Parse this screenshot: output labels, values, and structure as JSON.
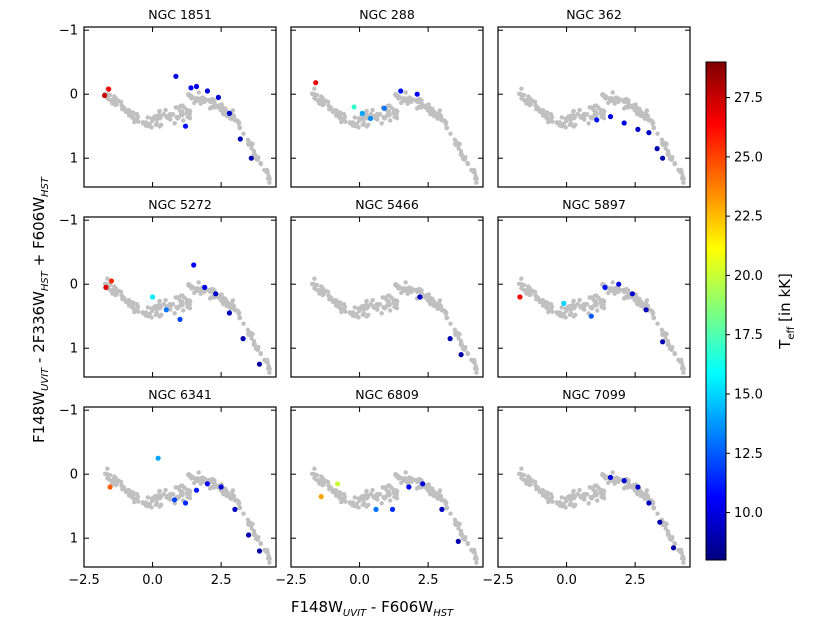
{
  "figure": {
    "xlabel": "F148W",
    "xlabel_sub": "UVIT",
    "xlabel_tail": " - F606W",
    "xlabel_sub2": "HST",
    "ylabel_parts": [
      "F148W",
      "UVIT",
      " - 2F336W",
      "HST",
      " + F606W",
      "HST"
    ],
    "colorbar_label": "T",
    "colorbar_label_sub": "eff",
    "colorbar_label_tail": " [in kK]",
    "colorbar_range": [
      8.0,
      29.0
    ],
    "colorbar_ticks": [
      "10.0",
      "12.5",
      "15.0",
      "17.5",
      "20.0",
      "22.5",
      "25.0",
      "27.5"
    ],
    "x_ticks": [
      "−2.5",
      "0.0",
      "2.5"
    ],
    "x_tick_values": [
      -2.5,
      0.0,
      2.5
    ],
    "y_ticks": [
      "−1",
      "0",
      "1"
    ],
    "y_tick_values": [
      -1,
      0,
      1
    ],
    "xlim": [
      -2.5,
      4.5
    ],
    "ylim": [
      1.45,
      -1.05
    ],
    "gray_color": "#c0c0c0",
    "colormap": "jet"
  },
  "chart_data": [
    {
      "type": "scatter",
      "title": "NGC 1851",
      "hot_stars": [
        [
          -1.75,
          0.02,
          27.5
        ],
        [
          -1.6,
          -0.08,
          26.5
        ],
        [
          0.85,
          -0.28,
          10.0
        ],
        [
          1.2,
          0.5,
          11.0
        ],
        [
          1.4,
          -0.1,
          10.5
        ],
        [
          1.6,
          -0.12,
          10.2
        ],
        [
          2.0,
          -0.05,
          9.8
        ],
        [
          2.4,
          0.05,
          9.8
        ],
        [
          2.8,
          0.3,
          9.5
        ],
        [
          3.2,
          0.7,
          9.2
        ],
        [
          3.6,
          1.0,
          9.0
        ]
      ]
    },
    {
      "type": "scatter",
      "title": "NGC 288",
      "hot_stars": [
        [
          -1.6,
          -0.18,
          26.5
        ],
        [
          -0.2,
          0.2,
          17.0
        ],
        [
          0.1,
          0.3,
          14.0
        ],
        [
          0.4,
          0.38,
          13.5
        ],
        [
          0.9,
          0.22,
          13.0
        ],
        [
          1.5,
          -0.05,
          11.0
        ],
        [
          2.1,
          0.0,
          10.5
        ]
      ]
    },
    {
      "type": "scatter",
      "title": "NGC 362",
      "hot_stars": [
        [
          1.1,
          0.4,
          11.0
        ],
        [
          1.6,
          0.35,
          10.0
        ],
        [
          2.1,
          0.45,
          10.0
        ],
        [
          2.6,
          0.55,
          9.5
        ],
        [
          3.0,
          0.6,
          9.5
        ],
        [
          3.3,
          0.85,
          9.0
        ],
        [
          3.5,
          1.0,
          9.0
        ]
      ]
    },
    {
      "type": "scatter",
      "title": "NGC 5272",
      "hot_stars": [
        [
          -1.7,
          0.05,
          27.0
        ],
        [
          -1.5,
          -0.05,
          25.5
        ],
        [
          0.0,
          0.2,
          15.5
        ],
        [
          0.5,
          0.4,
          13.0
        ],
        [
          1.0,
          0.55,
          12.0
        ],
        [
          1.5,
          -0.3,
          10.5
        ],
        [
          1.9,
          0.05,
          10.0
        ],
        [
          2.3,
          0.15,
          9.5
        ],
        [
          2.8,
          0.45,
          9.2
        ],
        [
          3.3,
          0.85,
          9.0
        ],
        [
          3.9,
          1.25,
          8.8
        ]
      ]
    },
    {
      "type": "scatter",
      "title": "NGC 5466",
      "hot_stars": [
        [
          2.2,
          0.2,
          9.5
        ],
        [
          3.3,
          0.85,
          9.0
        ],
        [
          3.7,
          1.1,
          8.8
        ]
      ]
    },
    {
      "type": "scatter",
      "title": "NGC 5897",
      "hot_stars": [
        [
          -1.7,
          0.2,
          26.5
        ],
        [
          -0.1,
          0.3,
          15.0
        ],
        [
          0.9,
          0.5,
          12.5
        ],
        [
          1.4,
          0.05,
          11.0
        ],
        [
          1.9,
          0.0,
          10.0
        ],
        [
          2.4,
          0.15,
          9.5
        ],
        [
          2.9,
          0.4,
          9.2
        ],
        [
          3.5,
          0.9,
          9.0
        ]
      ]
    },
    {
      "type": "scatter",
      "title": "NGC 6341",
      "hot_stars": [
        [
          -1.55,
          0.2,
          24.5
        ],
        [
          0.2,
          -0.25,
          14.0
        ],
        [
          0.8,
          0.4,
          12.0
        ],
        [
          1.2,
          0.45,
          11.5
        ],
        [
          1.6,
          0.25,
          11.0
        ],
        [
          2.0,
          0.15,
          10.5
        ],
        [
          2.5,
          0.2,
          9.8
        ],
        [
          3.0,
          0.55,
          9.2
        ],
        [
          3.5,
          0.95,
          9.0
        ],
        [
          3.9,
          1.2,
          8.8
        ]
      ]
    },
    {
      "type": "scatter",
      "title": "NGC 6809",
      "hot_stars": [
        [
          -1.4,
          0.35,
          23.0
        ],
        [
          -0.8,
          0.15,
          20.0
        ],
        [
          0.6,
          0.55,
          13.0
        ],
        [
          1.2,
          0.55,
          11.5
        ],
        [
          1.8,
          0.2,
          10.5
        ],
        [
          2.3,
          0.15,
          10.0
        ],
        [
          3.0,
          0.55,
          9.2
        ],
        [
          3.6,
          1.05,
          8.8
        ]
      ]
    },
    {
      "type": "scatter",
      "title": "NGC 7099",
      "hot_stars": [
        [
          1.6,
          0.05,
          10.0
        ],
        [
          2.1,
          0.1,
          9.8
        ],
        [
          2.6,
          0.2,
          9.5
        ],
        [
          3.0,
          0.45,
          9.2
        ],
        [
          3.4,
          0.75,
          9.0
        ],
        [
          3.9,
          1.15,
          8.8
        ]
      ]
    }
  ]
}
